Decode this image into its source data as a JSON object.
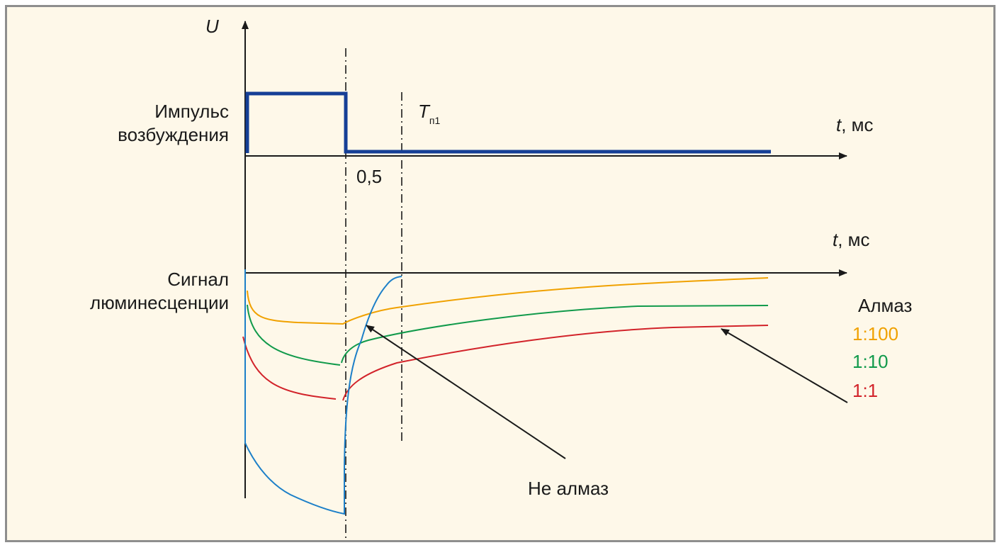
{
  "labels": {
    "u_axis": "U",
    "pulse_line1": "Импульс",
    "pulse_line2": "возбуждения",
    "signal_line1": "Сигнал",
    "signal_line2": "люминесценции",
    "t_axis_italic": "t",
    "t_axis_unit": ", мс",
    "tick_05": "0,5",
    "tp_main": "T",
    "tp_sub": "п1",
    "not_diamond": "Не алмаз"
  },
  "legend": {
    "title": "Алмаз",
    "items": [
      {
        "label": "1:100",
        "color": "#f0a100"
      },
      {
        "label": "1:10",
        "color": "#119a4b"
      },
      {
        "label": "1:1",
        "color": "#d2232a"
      }
    ]
  },
  "colors": {
    "pulse": "#153f96",
    "not_diamond": "#1c7fc8",
    "axis": "#1a1a1a"
  }
}
